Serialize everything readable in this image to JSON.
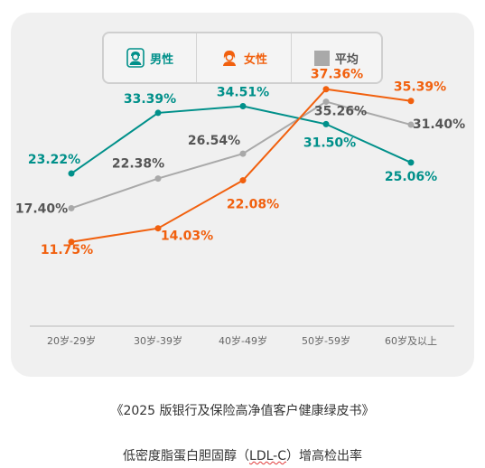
{
  "chart_data": {
    "type": "line",
    "categories": [
      "20岁-29岁",
      "30岁-39岁",
      "40岁-49岁",
      "50岁-59岁",
      "60岁及以上"
    ],
    "series": [
      {
        "name": "男性",
        "values": [
          23.22,
          33.39,
          34.51,
          31.5,
          25.06
        ],
        "labels": [
          "23.22%",
          "33.39%",
          "34.51%",
          "31.50%",
          "25.06%"
        ],
        "color": "#00908a"
      },
      {
        "name": "女性",
        "values": [
          11.75,
          14.03,
          22.08,
          37.36,
          35.39
        ],
        "labels": [
          "11.75%",
          "14.03%",
          "22.08%",
          "37.36%",
          "35.39%"
        ],
        "color": "#f1600e"
      },
      {
        "name": "平均",
        "values": [
          17.4,
          22.38,
          26.54,
          35.26,
          31.4
        ],
        "labels": [
          "17.40%",
          "22.38%",
          "26.54%",
          "35.26%",
          "31.40%"
        ],
        "color": "#a9a9a9"
      }
    ],
    "title": "",
    "xlabel": "",
    "ylabel": "",
    "grid": false,
    "legend_placement": "top-center"
  },
  "legend": {
    "male_label": "男性",
    "female_label": "女性",
    "avg_label": "平均",
    "male_icon": "male-person-icon",
    "female_icon": "female-person-icon"
  },
  "captions": {
    "source": "《2025 版银行及保险高净值客户健康绿皮书》",
    "subtitle_prefix": "低密度脂蛋白胆固醇（",
    "subtitle_code": "LDL-C",
    "subtitle_suffix": "）增高检出率"
  }
}
